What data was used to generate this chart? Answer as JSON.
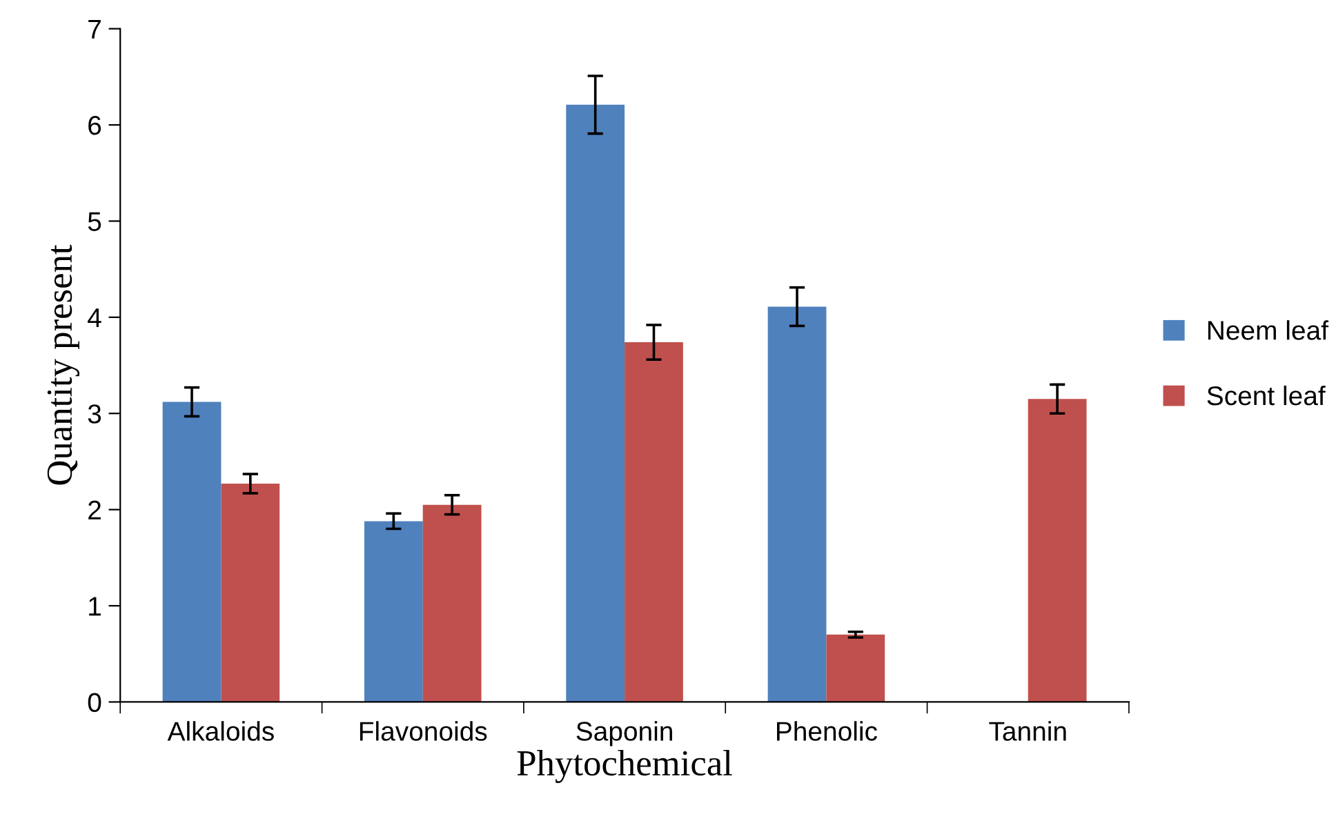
{
  "chart_data": {
    "type": "bar",
    "xlabel": "Phytochemical",
    "ylabel": "Quantity present",
    "categories": [
      "Alkaloids",
      "Flavonoids",
      "Saponin",
      "Phenolic",
      "Tannin"
    ],
    "series": [
      {
        "name": "Neem leaf",
        "color": "#4f81bd",
        "values": [
          3.12,
          1.88,
          6.21,
          4.11,
          null
        ],
        "errors": [
          0.15,
          0.08,
          0.3,
          0.2,
          null
        ]
      },
      {
        "name": "Scent leaf",
        "color": "#c0504d",
        "values": [
          2.27,
          2.05,
          3.74,
          0.7,
          3.15
        ],
        "errors": [
          0.1,
          0.1,
          0.18,
          0.03,
          0.15
        ]
      }
    ],
    "ylim": [
      0,
      7
    ],
    "yticks": [
      0,
      1,
      2,
      3,
      4,
      5,
      6,
      7
    ],
    "grid": false,
    "legend": "right"
  }
}
